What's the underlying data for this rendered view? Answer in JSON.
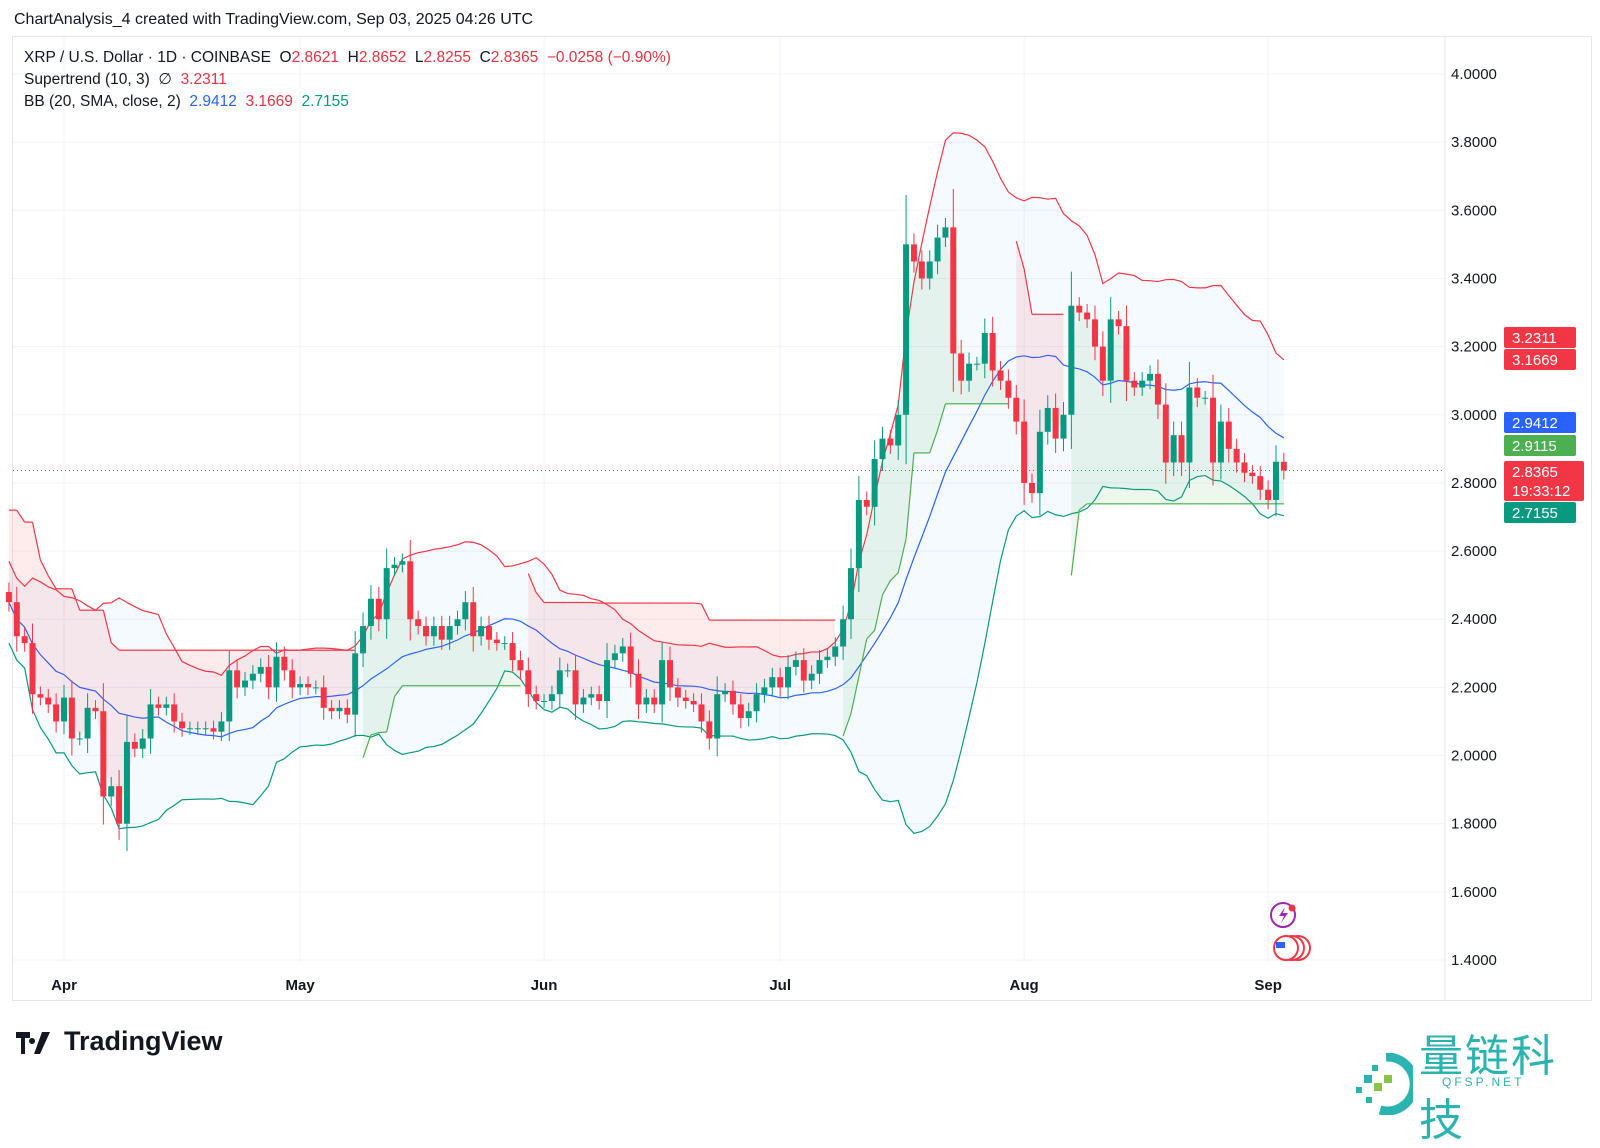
{
  "caption": "ChartAnalysis_4 created with TradingView.com, Sep 03, 2025 04:26 UTC",
  "legend": {
    "symbol": "XRP / U.S. Dollar · 1D · COINBASE",
    "o_label": "O",
    "o": "2.8621",
    "h_label": "H",
    "h": "2.8652",
    "l_label": "L",
    "l": "2.8255",
    "c_label": "C",
    "c": "2.8365",
    "change": "−0.0258 (−0.90%)",
    "supertrend": "Supertrend (10, 3)",
    "supertrend_icon": "∅",
    "supertrend_value": "3.2311",
    "bb": "BB (20, SMA, close, 2)",
    "bb_basis": "2.9412",
    "bb_upper": "3.1669",
    "bb_lower": "2.7155"
  },
  "chart_data": {
    "type": "candlestick",
    "ylim": [
      1.4,
      4.0
    ],
    "yticks": [
      "4.0000",
      "3.8000",
      "3.6000",
      "3.4000",
      "3.2000",
      "3.0000",
      "2.8000",
      "2.6000",
      "2.4000",
      "2.2000",
      "2.0000",
      "1.8000",
      "1.6000",
      "1.4000"
    ],
    "xticks": [
      {
        "label": "Apr",
        "date": "2025-04-01"
      },
      {
        "label": "May",
        "date": "2025-05-01"
      },
      {
        "label": "Jun",
        "date": "2025-06-01"
      },
      {
        "label": "Jul",
        "date": "2025-07-01"
      },
      {
        "label": "Aug",
        "date": "2025-08-01"
      },
      {
        "label": "Sep",
        "date": "2025-09-01"
      }
    ],
    "grid": true,
    "closes_by_month": [
      {
        "month": "2025-03",
        "first_day": 25,
        "close": [
          2.45,
          2.35,
          2.33,
          2.18,
          2.17,
          2.15,
          2.1
        ]
      },
      {
        "month": "2025-04",
        "first_day": 1,
        "close": [
          2.17,
          2.05,
          2.05,
          2.14,
          2.13,
          1.88,
          1.91,
          1.8,
          2.04,
          2.02,
          2.05,
          2.15,
          2.14,
          2.15,
          2.1,
          2.08,
          2.08,
          2.08,
          2.08,
          2.07,
          2.1,
          2.25,
          2.2,
          2.22,
          2.24,
          2.26,
          2.2,
          2.29,
          2.25,
          2.2
        ]
      },
      {
        "month": "2025-05",
        "first_day": 1,
        "close": [
          2.21,
          2.2,
          2.2,
          2.14,
          2.13,
          2.14,
          2.12,
          2.3,
          2.38,
          2.46,
          2.4,
          2.55,
          2.56,
          2.57,
          2.4,
          2.38,
          2.35,
          2.38,
          2.34,
          2.38,
          2.4,
          2.45,
          2.35,
          2.38,
          2.34,
          2.33,
          2.33,
          2.28,
          2.25,
          2.18,
          2.16
        ]
      },
      {
        "month": "2025-06",
        "first_day": 1,
        "close": [
          2.16,
          2.18,
          2.25,
          2.25,
          2.15,
          2.17,
          2.18,
          2.16,
          2.28,
          2.3,
          2.32,
          2.24,
          2.15,
          2.17,
          2.15,
          2.28,
          2.2,
          2.17,
          2.16,
          2.15,
          2.1,
          2.05,
          2.18,
          2.19,
          2.15,
          2.11,
          2.13,
          2.18,
          2.2,
          2.23
        ]
      },
      {
        "month": "2025-07",
        "first_day": 1,
        "close": [
          2.2,
          2.26,
          2.28,
          2.22,
          2.24,
          2.28,
          2.29,
          2.32,
          2.4,
          2.55,
          2.75,
          2.73,
          2.87,
          2.93,
          2.91,
          3.0,
          3.5,
          3.45,
          3.4,
          3.45,
          3.52,
          3.55,
          3.18,
          3.1,
          3.15,
          3.15,
          3.24,
          3.13,
          3.1,
          3.05,
          2.98
        ]
      },
      {
        "month": "2025-08",
        "first_day": 1,
        "close": [
          2.8,
          2.77,
          2.95,
          3.02,
          2.93,
          3.0,
          3.32,
          3.3,
          3.28,
          3.2,
          3.1,
          3.28,
          3.26,
          3.1,
          3.08,
          3.1,
          3.12,
          3.03,
          2.86,
          2.94,
          2.86,
          3.08,
          3.05,
          3.05,
          2.86,
          2.98,
          2.9,
          2.86,
          2.83,
          2.82,
          2.78
        ]
      },
      {
        "month": "2025-09",
        "first_day": 1,
        "close": [
          2.75,
          2.8621,
          2.8365
        ]
      }
    ],
    "indicators": [
      "Supertrend (10, 3)",
      "BB (20, SMA, close, 2)"
    ],
    "price_labels": [
      {
        "value": "3.2311",
        "color": "#f23645"
      },
      {
        "value": "3.1669",
        "color": "#f23645"
      },
      {
        "value": "2.9412",
        "color": "#2962ff"
      },
      {
        "value": "2.9115",
        "color": "#4caf50"
      },
      {
        "value": "2.8365",
        "extra": "19:33:12",
        "color": "#f23645"
      },
      {
        "value": "2.7155",
        "color": "#089981"
      }
    ],
    "colors": {
      "up": "#089981",
      "down": "#f23645",
      "bb_basis": "#2962ff",
      "bb_upper": "#f23645",
      "bb_lower": "#089981",
      "st_up": "#4caf50",
      "st_down": "#f23645"
    }
  },
  "branding": {
    "logo": "TradingView",
    "watermark_cn": "量链科技",
    "watermark_en": "QFSP.NET"
  }
}
